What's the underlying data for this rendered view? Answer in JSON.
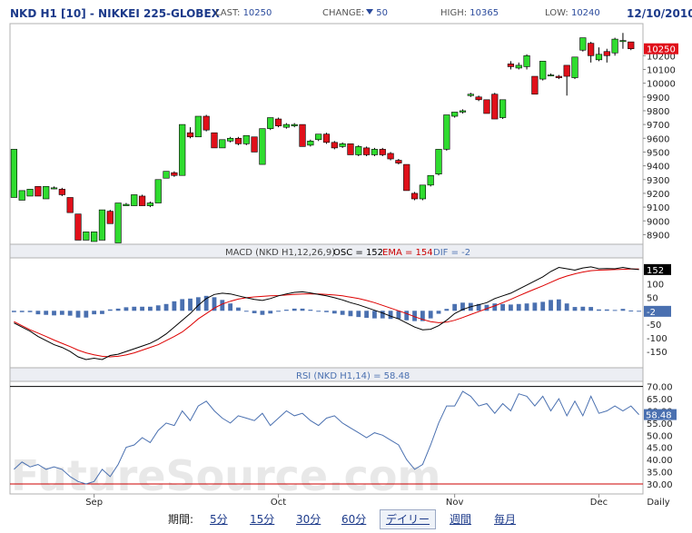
{
  "header": {
    "title": "NKD H1 [10] - NIKKEI 225-GLOBEX",
    "last_label": "LAST:",
    "last_value": "10250",
    "change_label": "CHANGE:",
    "change_value": "50",
    "high_label": "HIGH:",
    "high_value": "10365",
    "low_label": "LOW:",
    "low_value": "10240",
    "date": "12/10/2010"
  },
  "watermark": "FutureSource.com",
  "colors": {
    "up": "#2fdc2f",
    "down": "#e0101a",
    "macd_line": "#000000",
    "ema_line": "#dd0000",
    "hist": "#4a70b0",
    "rsi_line": "#4a70b0",
    "rsi_ref": "#cc0000",
    "title_blue": "#1c3a8a"
  },
  "chart_data": [
    {
      "type": "candlestick",
      "title": "",
      "y_ticks": [
        "10200",
        "10100",
        "10000",
        "9900",
        "9800",
        "9700",
        "9600",
        "9500",
        "9400",
        "9300",
        "9200",
        "9100",
        "9000",
        "8900"
      ],
      "ylim": [
        8850,
        10380
      ],
      "x_ticks": [
        "Sep",
        "Oct",
        "Nov",
        "Dec",
        "Daily"
      ],
      "last_price_label": "10250",
      "candles": [
        {
          "o": 9170,
          "c": 9520,
          "h": 9520,
          "l": 9170
        },
        {
          "o": 9150,
          "c": 9220,
          "h": 9220,
          "l": 9150
        },
        {
          "o": 9180,
          "c": 9230,
          "h": 9230,
          "l": 9180
        },
        {
          "o": 9250,
          "c": 9180,
          "h": 9250,
          "l": 9180
        },
        {
          "o": 9160,
          "c": 9250,
          "h": 9250,
          "l": 9160
        },
        {
          "o": 9240,
          "c": 9240,
          "h": 9250,
          "l": 9230
        },
        {
          "o": 9230,
          "c": 9190,
          "h": 9240,
          "l": 9180
        },
        {
          "o": 9170,
          "c": 9060,
          "h": 9170,
          "l": 9060
        },
        {
          "o": 9050,
          "c": 8860,
          "h": 9050,
          "l": 8860
        },
        {
          "o": 8860,
          "c": 8920,
          "h": 8920,
          "l": 8860
        },
        {
          "o": 8850,
          "c": 8920,
          "h": 8920,
          "l": 8850
        },
        {
          "o": 8860,
          "c": 9080,
          "h": 9080,
          "l": 8860
        },
        {
          "o": 9070,
          "c": 8980,
          "h": 9080,
          "l": 8980
        },
        {
          "o": 8840,
          "c": 9130,
          "h": 9130,
          "l": 8840
        },
        {
          "o": 9110,
          "c": 9120,
          "h": 9130,
          "l": 9110
        },
        {
          "o": 9110,
          "c": 9190,
          "h": 9190,
          "l": 9110
        },
        {
          "o": 9180,
          "c": 9110,
          "h": 9190,
          "l": 9110
        },
        {
          "o": 9110,
          "c": 9130,
          "h": 9140,
          "l": 9100
        },
        {
          "o": 9130,
          "c": 9300,
          "h": 9300,
          "l": 9130
        },
        {
          "o": 9310,
          "c": 9360,
          "h": 9360,
          "l": 9310
        },
        {
          "o": 9350,
          "c": 9330,
          "h": 9360,
          "l": 9320
        },
        {
          "o": 9330,
          "c": 9700,
          "h": 9700,
          "l": 9330
        },
        {
          "o": 9640,
          "c": 9610,
          "h": 9680,
          "l": 9600
        },
        {
          "o": 9610,
          "c": 9760,
          "h": 9760,
          "l": 9610
        },
        {
          "o": 9760,
          "c": 9660,
          "h": 9770,
          "l": 9650
        },
        {
          "o": 9640,
          "c": 9530,
          "h": 9640,
          "l": 9530
        },
        {
          "o": 9530,
          "c": 9590,
          "h": 9590,
          "l": 9530
        },
        {
          "o": 9580,
          "c": 9600,
          "h": 9610,
          "l": 9570
        },
        {
          "o": 9600,
          "c": 9560,
          "h": 9610,
          "l": 9550
        },
        {
          "o": 9560,
          "c": 9620,
          "h": 9620,
          "l": 9550
        },
        {
          "o": 9610,
          "c": 9500,
          "h": 9610,
          "l": 9500
        },
        {
          "o": 9410,
          "c": 9670,
          "h": 9670,
          "l": 9410
        },
        {
          "o": 9670,
          "c": 9750,
          "h": 9750,
          "l": 9660
        },
        {
          "o": 9740,
          "c": 9690,
          "h": 9750,
          "l": 9680
        },
        {
          "o": 9680,
          "c": 9700,
          "h": 9710,
          "l": 9670
        },
        {
          "o": 9690,
          "c": 9700,
          "h": 9710,
          "l": 9680
        },
        {
          "o": 9700,
          "c": 9540,
          "h": 9700,
          "l": 9540
        },
        {
          "o": 9550,
          "c": 9580,
          "h": 9590,
          "l": 9540
        },
        {
          "o": 9590,
          "c": 9630,
          "h": 9630,
          "l": 9580
        },
        {
          "o": 9630,
          "c": 9570,
          "h": 9640,
          "l": 9560
        },
        {
          "o": 9570,
          "c": 9530,
          "h": 9580,
          "l": 9520
        },
        {
          "o": 9540,
          "c": 9560,
          "h": 9570,
          "l": 9530
        },
        {
          "o": 9560,
          "c": 9480,
          "h": 9560,
          "l": 9480
        },
        {
          "o": 9480,
          "c": 9540,
          "h": 9550,
          "l": 9470
        },
        {
          "o": 9530,
          "c": 9480,
          "h": 9540,
          "l": 9470
        },
        {
          "o": 9480,
          "c": 9520,
          "h": 9530,
          "l": 9470
        },
        {
          "o": 9520,
          "c": 9480,
          "h": 9530,
          "l": 9470
        },
        {
          "o": 9490,
          "c": 9450,
          "h": 9500,
          "l": 9440
        },
        {
          "o": 9440,
          "c": 9420,
          "h": 9450,
          "l": 9410
        },
        {
          "o": 9410,
          "c": 9220,
          "h": 9410,
          "l": 9220
        },
        {
          "o": 9200,
          "c": 9160,
          "h": 9210,
          "l": 9150
        },
        {
          "o": 9160,
          "c": 9260,
          "h": 9260,
          "l": 9150
        },
        {
          "o": 9260,
          "c": 9330,
          "h": 9330,
          "l": 9250
        },
        {
          "o": 9340,
          "c": 9520,
          "h": 9520,
          "l": 9330
        },
        {
          "o": 9520,
          "c": 9770,
          "h": 9770,
          "l": 9510
        },
        {
          "o": 9760,
          "c": 9790,
          "h": 9790,
          "l": 9750
        },
        {
          "o": 9790,
          "c": 9800,
          "h": 9810,
          "l": 9780
        },
        {
          "o": 9910,
          "c": 9920,
          "h": 9930,
          "l": 9900
        },
        {
          "o": 9900,
          "c": 9880,
          "h": 9910,
          "l": 9870
        },
        {
          "o": 9880,
          "c": 9780,
          "h": 9880,
          "l": 9780
        },
        {
          "o": 9920,
          "c": 9740,
          "h": 9930,
          "l": 9740
        },
        {
          "o": 9750,
          "c": 9880,
          "h": 9880,
          "l": 9740
        },
        {
          "o": 10140,
          "c": 10120,
          "h": 10160,
          "l": 10100
        },
        {
          "o": 10110,
          "c": 10130,
          "h": 10150,
          "l": 10100
        },
        {
          "o": 10120,
          "c": 10200,
          "h": 10210,
          "l": 10100
        },
        {
          "o": 10050,
          "c": 9920,
          "h": 10050,
          "l": 9920
        },
        {
          "o": 10030,
          "c": 10160,
          "h": 10160,
          "l": 10020
        },
        {
          "o": 10060,
          "c": 10060,
          "h": 10070,
          "l": 10050
        },
        {
          "o": 10050,
          "c": 10040,
          "h": 10060,
          "l": 10030
        },
        {
          "o": 10130,
          "c": 10050,
          "h": 10130,
          "l": 9910
        },
        {
          "o": 10040,
          "c": 10190,
          "h": 10190,
          "l": 10030
        },
        {
          "o": 10240,
          "c": 10330,
          "h": 10330,
          "l": 10230
        },
        {
          "o": 10290,
          "c": 10200,
          "h": 10300,
          "l": 10150
        },
        {
          "o": 10170,
          "c": 10210,
          "h": 10260,
          "l": 10160
        },
        {
          "o": 10230,
          "c": 10200,
          "h": 10250,
          "l": 10150
        },
        {
          "o": 10220,
          "c": 10320,
          "h": 10330,
          "l": 10200
        },
        {
          "o": 10310,
          "c": 10310,
          "h": 10365,
          "l": 10250
        },
        {
          "o": 10300,
          "c": 10250,
          "h": 10300,
          "l": 10240
        }
      ]
    },
    {
      "type": "line+histogram",
      "title": "MACD (NKD H1,12,26,9)",
      "osc_label": "OSC = 152",
      "ema_label": "EMA = 154",
      "dif_label": "DIF = -2",
      "y_ticks": [
        "100",
        "50",
        "0",
        "-50",
        "-100",
        "-150"
      ],
      "ylim": [
        -200,
        175
      ],
      "value_label": "152",
      "dif_value_label": "-2",
      "macd": [
        -45,
        -60,
        -75,
        -95,
        -110,
        -125,
        -135,
        -150,
        -170,
        -180,
        -175,
        -180,
        -165,
        -160,
        -150,
        -140,
        -130,
        -120,
        -105,
        -85,
        -60,
        -35,
        -10,
        20,
        45,
        60,
        65,
        62,
        55,
        48,
        42,
        38,
        45,
        55,
        62,
        68,
        70,
        66,
        60,
        55,
        48,
        40,
        30,
        22,
        12,
        2,
        -8,
        -20,
        -30,
        -45,
        -60,
        -70,
        -68,
        -55,
        -35,
        -10,
        5,
        15,
        22,
        30,
        45,
        55,
        65,
        80,
        95,
        110,
        125,
        145,
        160,
        155,
        150,
        158,
        162,
        155,
        156,
        155,
        160,
        155,
        152
      ],
      "ema": [
        -40,
        -55,
        -70,
        -82,
        -95,
        -108,
        -120,
        -132,
        -145,
        -155,
        -162,
        -168,
        -170,
        -168,
        -163,
        -155,
        -145,
        -135,
        -125,
        -110,
        -95,
        -78,
        -55,
        -30,
        -10,
        10,
        25,
        35,
        43,
        48,
        51,
        53,
        55,
        56,
        58,
        60,
        62,
        62,
        62,
        60,
        58,
        55,
        50,
        45,
        38,
        30,
        20,
        10,
        0,
        -10,
        -22,
        -32,
        -40,
        -44,
        -42,
        -35,
        -25,
        -14,
        -3,
        8,
        18,
        30,
        42,
        55,
        68,
        80,
        92,
        105,
        118,
        128,
        136,
        143,
        148,
        150,
        151,
        152,
        153,
        154,
        154
      ],
      "histogram": [
        -5,
        -5,
        -5,
        -13,
        -15,
        -17,
        -15,
        -18,
        -25,
        -25,
        -13,
        -12,
        5,
        8,
        13,
        15,
        15,
        15,
        20,
        25,
        35,
        43,
        45,
        50,
        55,
        50,
        40,
        27,
        12,
        0,
        -9,
        -15,
        -10,
        -1,
        4,
        8,
        8,
        4,
        -2,
        -5,
        -10,
        -15,
        -20,
        -23,
        -26,
        -28,
        -28,
        -30,
        -30,
        -35,
        -38,
        -38,
        -28,
        -11,
        7,
        25,
        30,
        29,
        25,
        22,
        27,
        25,
        23,
        25,
        27,
        30,
        33,
        40,
        42,
        27,
        14,
        15,
        14,
        5,
        5,
        3,
        7,
        1,
        -2
      ]
    },
    {
      "type": "line",
      "title": "RSI (NKD H1,14)",
      "value_label": "RSI (NKD H1,14) = 58.48",
      "y_ticks": [
        "70.00",
        "65.00",
        "60.00",
        "55.00",
        "50.00",
        "45.00",
        "40.00",
        "35.00",
        "30.00"
      ],
      "ylim": [
        27,
        71
      ],
      "ref_levels": [
        70,
        30
      ],
      "current_label": "58.48",
      "rsi": [
        36,
        39,
        37,
        38,
        36,
        37,
        36,
        33,
        31,
        30,
        31,
        36,
        33,
        38,
        45,
        46,
        49,
        47,
        52,
        55,
        54,
        60,
        56,
        62,
        64,
        60,
        57,
        55,
        58,
        57,
        56,
        59,
        54,
        57,
        60,
        58,
        59,
        56,
        54,
        57,
        58,
        55,
        53,
        51,
        49,
        51,
        50,
        48,
        46,
        40,
        36,
        38,
        46,
        55,
        62,
        62,
        68,
        66,
        62,
        63,
        59,
        63,
        60,
        67,
        66,
        62,
        66,
        60,
        65,
        58,
        64,
        58,
        66,
        59,
        60,
        62,
        60,
        62,
        58.48
      ]
    }
  ],
  "bottom_bar": {
    "period_label": "期間:",
    "options": [
      "5分",
      "15分",
      "30分",
      "60分",
      "デイリー",
      "週間",
      "毎月"
    ]
  }
}
